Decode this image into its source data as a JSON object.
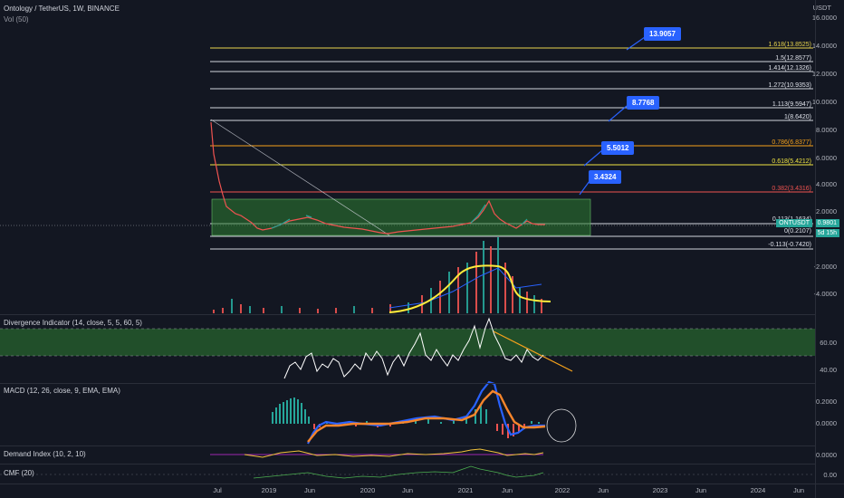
{
  "header": {
    "title": "Ontology / TetherUS, 1W, BINANCE",
    "volume": "Vol (50)",
    "currency": "USDT"
  },
  "price_axis": [
    "16.0000",
    "14.0000",
    "12.0000",
    "10.0000",
    "8.0000",
    "6.0000",
    "4.0000",
    "2.0000",
    "-2.0000",
    "-4.0000"
  ],
  "price_tag": {
    "symbol": "ONTUSDT",
    "value": "0.9801",
    "countdown": "5d 15h"
  },
  "fib_levels": [
    {
      "label": "1.618(13.8525)",
      "color": "#e8d44d"
    },
    {
      "label": "1.5(12.8577)",
      "color": "#e0e3eb"
    },
    {
      "label": "1.414(12.1326)",
      "color": "#e0e3eb"
    },
    {
      "label": "1.272(10.9353)",
      "color": "#e0e3eb"
    },
    {
      "label": "1.113(9.5947)",
      "color": "#e0e3eb"
    },
    {
      "label": "1(8.6420)",
      "color": "#e0e3eb"
    },
    {
      "label": "0.786(6.8377)",
      "color": "#f7a21b"
    },
    {
      "label": "0.618(5.4212)",
      "color": "#f0e442"
    },
    {
      "label": "0.382(3.4316)",
      "color": "#ef5350"
    },
    {
      "label": "0.113(1.1634)",
      "color": "#e0e3eb"
    },
    {
      "label": "0(0.2107)",
      "color": "#e0e3eb"
    },
    {
      "label": "-0.113(-0.7420)",
      "color": "#e0e3eb"
    }
  ],
  "callouts": [
    "13.9057",
    "8.7768",
    "5.5012",
    "3.4324"
  ],
  "indicators": {
    "divergence": {
      "title": "Divergence Indicator (14, close, 5, 5, 60, 5)",
      "axis": [
        "60.00",
        "40.00"
      ]
    },
    "macd": {
      "title": "MACD (12, 26, close, 9, EMA, EMA)",
      "axis": [
        "0.2000",
        "0.0000"
      ]
    },
    "demand": {
      "title": "Demand Index (10, 2, 10)",
      "axis": [
        "0.0000"
      ]
    },
    "cmf": {
      "title": "CMF (20)",
      "axis": [
        "0.00"
      ]
    }
  },
  "time_axis": [
    "Jul",
    "2019",
    "Jun",
    "2020",
    "Jun",
    "2021",
    "Jun",
    "2022",
    "Jun",
    "2023",
    "Jun",
    "2024",
    "Jun"
  ],
  "colors": {
    "accent": "#2962ff",
    "up": "#26a69a",
    "down": "#ef5350",
    "zone": "#2e7d32",
    "curve": "#ffeb3b"
  }
}
